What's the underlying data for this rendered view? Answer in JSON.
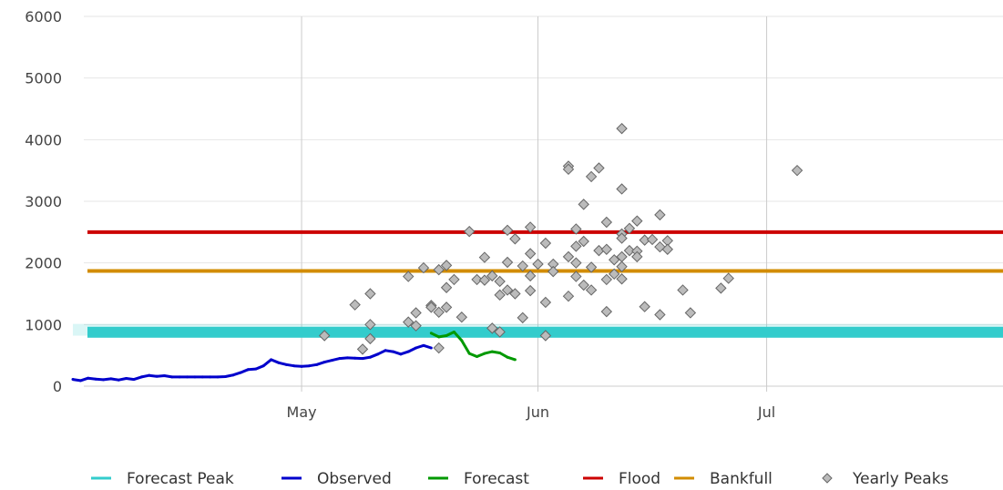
{
  "chart_data": {
    "type": "line",
    "title": "",
    "xlabel": "",
    "ylabel": "",
    "xlim": [
      "2000-04-01",
      "2000-08-01"
    ],
    "ylim": [
      0,
      6000
    ],
    "grid": true,
    "legend_position": "bottom",
    "x_ticks": [
      {
        "label": "May",
        "date": "2000-05-01"
      },
      {
        "label": "Jun",
        "date": "2000-06-01"
      },
      {
        "label": "Jul",
        "date": "2000-07-01"
      }
    ],
    "y_ticks": [
      0,
      1000,
      2000,
      3000,
      4000,
      5000,
      6000
    ],
    "series": [
      {
        "name": "Forecast Peak",
        "kind": "band",
        "color": "#33cccc",
        "value": 875,
        "range": [
          820,
          1010
        ]
      },
      {
        "name": "Observed",
        "kind": "line",
        "color": "#0000cc",
        "points": [
          [
            "2000-04-01",
            110
          ],
          [
            "2000-04-02",
            90
          ],
          [
            "2000-04-03",
            130
          ],
          [
            "2000-04-04",
            115
          ],
          [
            "2000-04-05",
            105
          ],
          [
            "2000-04-06",
            120
          ],
          [
            "2000-04-07",
            100
          ],
          [
            "2000-04-08",
            125
          ],
          [
            "2000-04-09",
            110
          ],
          [
            "2000-04-10",
            150
          ],
          [
            "2000-04-11",
            175
          ],
          [
            "2000-04-12",
            160
          ],
          [
            "2000-04-13",
            170
          ],
          [
            "2000-04-14",
            150
          ],
          [
            "2000-04-15",
            150
          ],
          [
            "2000-04-16",
            150
          ],
          [
            "2000-04-17",
            150
          ],
          [
            "2000-04-18",
            150
          ],
          [
            "2000-04-19",
            150
          ],
          [
            "2000-04-20",
            150
          ],
          [
            "2000-04-21",
            155
          ],
          [
            "2000-04-22",
            180
          ],
          [
            "2000-04-23",
            220
          ],
          [
            "2000-04-24",
            270
          ],
          [
            "2000-04-25",
            280
          ],
          [
            "2000-04-26",
            330
          ],
          [
            "2000-04-27",
            430
          ],
          [
            "2000-04-28",
            380
          ],
          [
            "2000-04-29",
            350
          ],
          [
            "2000-04-30",
            330
          ],
          [
            "2000-05-01",
            320
          ],
          [
            "2000-05-02",
            330
          ],
          [
            "2000-05-03",
            350
          ],
          [
            "2000-05-04",
            390
          ],
          [
            "2000-05-05",
            420
          ],
          [
            "2000-05-06",
            450
          ],
          [
            "2000-05-07",
            460
          ],
          [
            "2000-05-08",
            455
          ],
          [
            "2000-05-09",
            450
          ],
          [
            "2000-05-10",
            470
          ],
          [
            "2000-05-11",
            520
          ],
          [
            "2000-05-12",
            580
          ],
          [
            "2000-05-13",
            560
          ],
          [
            "2000-05-14",
            520
          ],
          [
            "2000-05-15",
            560
          ],
          [
            "2000-05-16",
            620
          ],
          [
            "2000-05-17",
            660
          ],
          [
            "2000-05-18",
            620
          ]
        ]
      },
      {
        "name": "Forecast",
        "kind": "line",
        "color": "#009900",
        "points": [
          [
            "2000-05-18",
            860
          ],
          [
            "2000-05-19",
            800
          ],
          [
            "2000-05-20",
            820
          ],
          [
            "2000-05-21",
            880
          ],
          [
            "2000-05-22",
            740
          ],
          [
            "2000-05-23",
            530
          ],
          [
            "2000-05-24",
            480
          ],
          [
            "2000-05-25",
            530
          ],
          [
            "2000-05-26",
            560
          ],
          [
            "2000-05-27",
            540
          ],
          [
            "2000-05-28",
            470
          ],
          [
            "2000-05-29",
            430
          ]
        ]
      },
      {
        "name": "Flood",
        "kind": "hline",
        "color": "#cc0000",
        "value": 2500
      },
      {
        "name": "Bankfull",
        "kind": "hline",
        "color": "#d28c00",
        "value": 1870
      },
      {
        "name": "Yearly Peaks",
        "kind": "scatter",
        "color": "#bbbbbb",
        "points": [
          [
            "2000-05-04",
            820
          ],
          [
            "2000-05-08",
            1320
          ],
          [
            "2000-05-09",
            600
          ],
          [
            "2000-05-10",
            1500
          ],
          [
            "2000-05-10",
            1000
          ],
          [
            "2000-05-10",
            770
          ],
          [
            "2000-05-15",
            1780
          ],
          [
            "2000-05-15",
            1040
          ],
          [
            "2000-05-16",
            1190
          ],
          [
            "2000-05-16",
            980
          ],
          [
            "2000-05-17",
            1920
          ],
          [
            "2000-05-18",
            1310
          ],
          [
            "2000-05-18",
            1280
          ],
          [
            "2000-05-19",
            1890
          ],
          [
            "2000-05-19",
            1200
          ],
          [
            "2000-05-19",
            620
          ],
          [
            "2000-05-20",
            1960
          ],
          [
            "2000-05-20",
            1600
          ],
          [
            "2000-05-20",
            1280
          ],
          [
            "2000-05-21",
            1730
          ],
          [
            "2000-05-22",
            1120
          ],
          [
            "2000-05-23",
            2510
          ],
          [
            "2000-05-24",
            1730
          ],
          [
            "2000-05-25",
            2090
          ],
          [
            "2000-05-25",
            1720
          ],
          [
            "2000-05-26",
            1790
          ],
          [
            "2000-05-26",
            940
          ],
          [
            "2000-05-27",
            880
          ],
          [
            "2000-05-27",
            1700
          ],
          [
            "2000-05-27",
            1480
          ],
          [
            "2000-05-28",
            2530
          ],
          [
            "2000-05-28",
            2010
          ],
          [
            "2000-05-28",
            1560
          ],
          [
            "2000-05-29",
            2390
          ],
          [
            "2000-05-29",
            1500
          ],
          [
            "2000-05-30",
            1950
          ],
          [
            "2000-05-30",
            1110
          ],
          [
            "2000-05-31",
            2580
          ],
          [
            "2000-05-31",
            2150
          ],
          [
            "2000-05-31",
            1790
          ],
          [
            "2000-05-31",
            1550
          ],
          [
            "2000-06-01",
            1980
          ],
          [
            "2000-06-02",
            2320
          ],
          [
            "2000-06-02",
            1360
          ],
          [
            "2000-06-02",
            820
          ],
          [
            "2000-06-03",
            1980
          ],
          [
            "2000-06-03",
            1860
          ],
          [
            "2000-06-05",
            3570
          ],
          [
            "2000-06-05",
            3520
          ],
          [
            "2000-06-05",
            2100
          ],
          [
            "2000-06-05",
            1460
          ],
          [
            "2000-06-06",
            2550
          ],
          [
            "2000-06-06",
            2270
          ],
          [
            "2000-06-06",
            2000
          ],
          [
            "2000-06-06",
            1780
          ],
          [
            "2000-06-07",
            2950
          ],
          [
            "2000-06-07",
            2350
          ],
          [
            "2000-06-07",
            1640
          ],
          [
            "2000-06-08",
            3400
          ],
          [
            "2000-06-08",
            1930
          ],
          [
            "2000-06-08",
            1560
          ],
          [
            "2000-06-09",
            3540
          ],
          [
            "2000-06-09",
            2200
          ],
          [
            "2000-06-10",
            2660
          ],
          [
            "2000-06-10",
            2220
          ],
          [
            "2000-06-10",
            1730
          ],
          [
            "2000-06-10",
            1210
          ],
          [
            "2000-06-11",
            2050
          ],
          [
            "2000-06-11",
            1820
          ],
          [
            "2000-06-12",
            4180
          ],
          [
            "2000-06-12",
            3200
          ],
          [
            "2000-06-12",
            2470
          ],
          [
            "2000-06-12",
            2400
          ],
          [
            "2000-06-12",
            2100
          ],
          [
            "2000-06-12",
            1940
          ],
          [
            "2000-06-12",
            1740
          ],
          [
            "2000-06-13",
            2560
          ],
          [
            "2000-06-13",
            2200
          ],
          [
            "2000-06-14",
            2680
          ],
          [
            "2000-06-14",
            2190
          ],
          [
            "2000-06-14",
            2100
          ],
          [
            "2000-06-15",
            2370
          ],
          [
            "2000-06-15",
            1290
          ],
          [
            "2000-06-16",
            2380
          ],
          [
            "2000-06-17",
            2780
          ],
          [
            "2000-06-17",
            2260
          ],
          [
            "2000-06-17",
            1160
          ],
          [
            "2000-06-18",
            2360
          ],
          [
            "2000-06-18",
            2220
          ],
          [
            "2000-06-20",
            1560
          ],
          [
            "2000-06-21",
            1190
          ],
          [
            "2000-06-25",
            1590
          ],
          [
            "2000-06-26",
            1750
          ],
          [
            "2000-07-05",
            3500
          ]
        ]
      }
    ]
  }
}
